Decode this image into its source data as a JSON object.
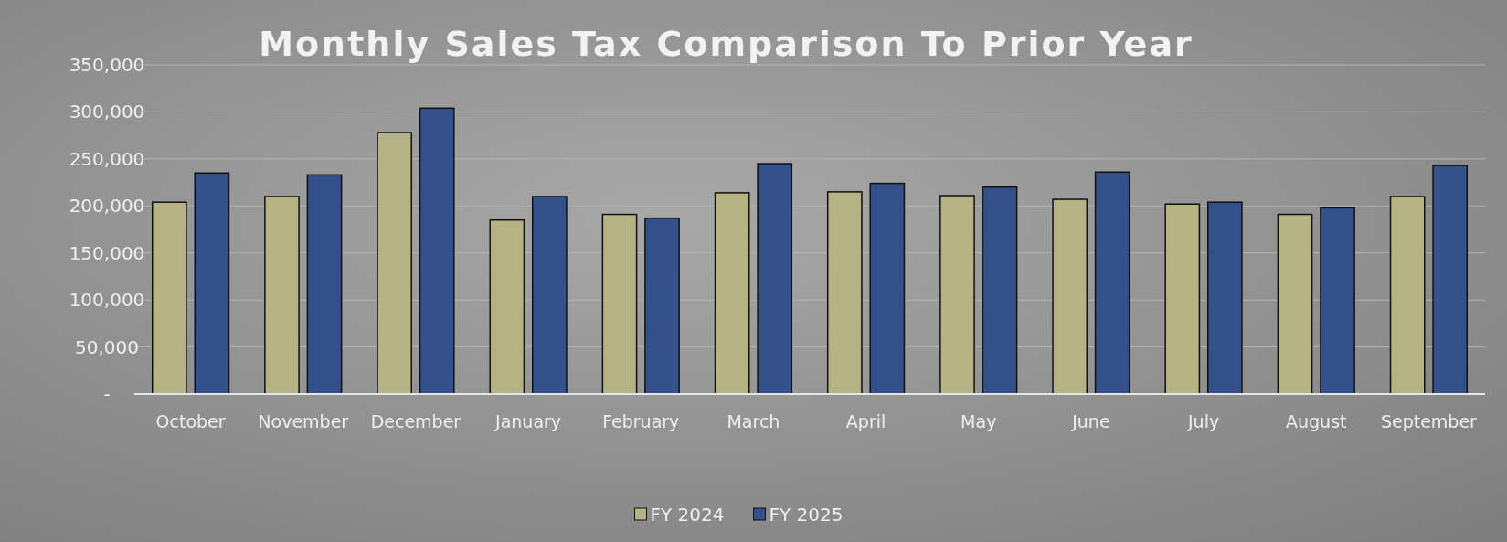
{
  "chart_data": {
    "type": "bar",
    "title": "Monthly Sales Tax Comparison To Prior Year",
    "categories": [
      "October",
      "November",
      "December",
      "January",
      "February",
      "March",
      "April",
      "May",
      "June",
      "July",
      "August",
      "September"
    ],
    "series": [
      {
        "name": "FY 2024",
        "color": "#b5b283",
        "values": [
          204000,
          210000,
          278000,
          185000,
          191000,
          214000,
          215000,
          211000,
          207000,
          202000,
          191000,
          210000
        ]
      },
      {
        "name": "FY 2025",
        "color": "#34508a",
        "values": [
          235000,
          233000,
          304000,
          210000,
          187000,
          245000,
          224000,
          220000,
          236000,
          204000,
          198000,
          243000
        ]
      }
    ],
    "ylim": [
      0,
      350000
    ],
    "yticks": [
      {
        "value": 0,
        "label": "-"
      },
      {
        "value": 50000,
        "label": "50,000"
      },
      {
        "value": 100000,
        "label": "100,000"
      },
      {
        "value": 150000,
        "label": "150,000"
      },
      {
        "value": 200000,
        "label": "200,000"
      },
      {
        "value": 250000,
        "label": "250,000"
      },
      {
        "value": 300000,
        "label": "300,000"
      },
      {
        "value": 350000,
        "label": "350,000"
      }
    ],
    "grid": "y",
    "legend": "bottom"
  }
}
